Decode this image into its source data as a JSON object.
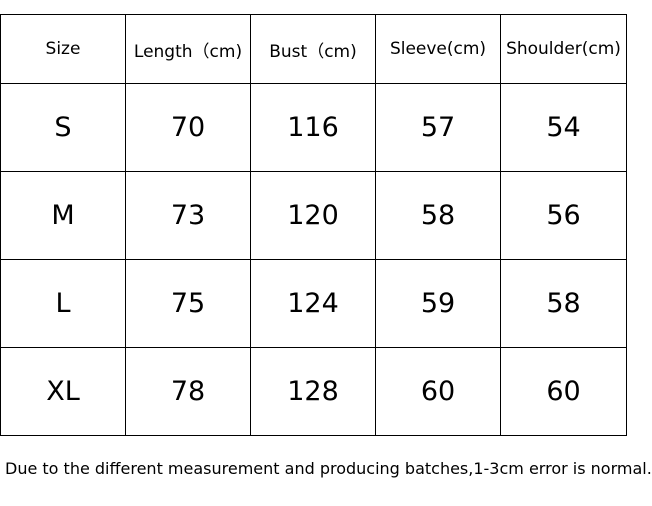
{
  "table": {
    "header": [
      "Size",
      "Length（cm)",
      "Bust（cm)",
      "Sleeve(cm)",
      "Shoulder(cm)"
    ],
    "rows": [
      [
        "S",
        70,
        116,
        57,
        54
      ],
      [
        "M",
        73,
        120,
        58,
        56
      ],
      [
        "L",
        75,
        124,
        59,
        58
      ],
      [
        "XL",
        78,
        128,
        60,
        60
      ]
    ]
  },
  "note": "Due to the different measurement and producing batches,1-3cm error is normal."
}
